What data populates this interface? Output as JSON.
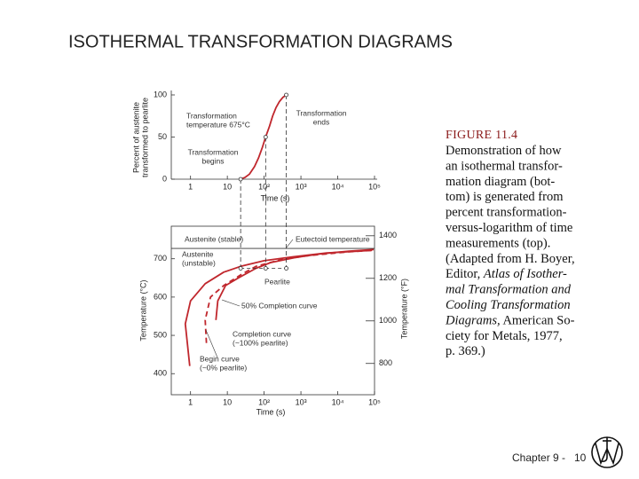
{
  "title": "ISOTHERMAL TRANSFORMATION DIAGRAMS",
  "figure": {
    "top_chart": {
      "type": "line",
      "xscale": "log",
      "ylabel": [
        "Percent of austenite",
        "transformed to pearlite"
      ],
      "xlabel": "Time (s)",
      "xlim": [
        0.3,
        100000
      ],
      "xticks": [
        1,
        10,
        {
          "value": 100,
          "label": "10²"
        },
        {
          "value": 1000,
          "label": "10³"
        },
        {
          "value": 10000,
          "label": "10⁴"
        },
        {
          "value": 100000,
          "label": "10⁵"
        }
      ],
      "ylim": [
        0,
        100
      ],
      "yticks": [
        0,
        50,
        100
      ],
      "series": [
        {
          "color": "#c0272d",
          "dashed": false,
          "x": [
            23,
            30,
            40,
            55,
            70,
            90,
            110,
            140,
            170,
            210,
            260,
            320,
            400
          ],
          "values": [
            0,
            2,
            6,
            15,
            25,
            38,
            50,
            63,
            75,
            85,
            92,
            97,
            100
          ]
        }
      ],
      "annotations": [
        [
          "Transformation",
          "temperature 675°C"
        ],
        [
          "Transformation",
          "ends"
        ],
        [
          "Transformation",
          "begins"
        ]
      ]
    },
    "bottom_chart": {
      "type": "line",
      "xscale": "log",
      "ylabel": "Temperature (°C)",
      "y2label": "Temperature (°F)",
      "xlabel": "Time (s)",
      "xlim": [
        0.3,
        100000
      ],
      "xticks": [
        1,
        10,
        {
          "value": 100,
          "label": "10²"
        },
        {
          "value": 1000,
          "label": "10³"
        },
        {
          "value": 10000,
          "label": "10⁴"
        },
        {
          "value": 100000,
          "label": "10⁵"
        }
      ],
      "ylim": [
        345,
        785
      ],
      "yticks": [
        400,
        500,
        600,
        700
      ],
      "y2lim": [
        653,
        1445
      ],
      "y2ticks": [
        800,
        1000,
        1200,
        1400
      ],
      "eutectoid_temperature": 727,
      "transformation_temperature": 675,
      "series": [
        {
          "color": "#c0272d",
          "dashed": false,
          "x": [
            0.95,
            0.72,
            1,
            2.5,
            8,
            23,
            100,
            610,
            5000,
            85000
          ],
          "values": [
            420,
            530,
            590,
            635,
            665,
            680,
            695,
            705,
            715,
            722
          ]
        },
        {
          "color": "#c0272d",
          "dashed": true,
          "x": [
            2.7,
            2.5,
            3.5,
            8,
            25,
            60,
            300,
            1500,
            20000,
            90000
          ],
          "values": [
            480,
            540,
            600,
            630,
            660,
            680,
            698,
            708,
            718,
            722
          ]
        },
        {
          "color": "#c0272d",
          "dashed": false,
          "x": [
            4.9,
            5.5,
            9,
            20,
            60,
            150,
            700,
            3000,
            20000,
            95000
          ],
          "values": [
            540,
            590,
            630,
            650,
            675,
            690,
            703,
            712,
            720,
            724
          ]
        }
      ],
      "annotations": [
        [
          "Austenite (stable)"
        ],
        [
          "Eutectoid temperature"
        ],
        [
          "Austenite",
          "(unstable)"
        ],
        [
          "Pearlite"
        ],
        [
          "50% Completion curve"
        ],
        [
          "Completion curve",
          "(~100% pearlite)"
        ],
        [
          "Begin curve",
          "(~0% pearlite)"
        ]
      ]
    },
    "caption": {
      "label": "FIGURE 11.4",
      "lines": [
        [
          {
            "text": "Demonstration of how",
            "italic": false
          }
        ],
        [
          {
            "text": "an isothermal transfor-",
            "italic": false
          }
        ],
        [
          {
            "text": "mation diagram (bot-",
            "italic": false
          }
        ],
        [
          {
            "text": "tom) is generated from",
            "italic": false
          }
        ],
        [
          {
            "text": "percent transformation-",
            "italic": false
          }
        ],
        [
          {
            "text": "versus-logarithm of time",
            "italic": false
          }
        ],
        [
          {
            "text": "measurements (top).",
            "italic": false
          }
        ],
        [
          {
            "text": "(Adapted from H. Boyer,",
            "italic": false
          }
        ],
        [
          {
            "text": "Editor, ",
            "italic": false
          },
          {
            "text": "Atlas of Isother-",
            "italic": true
          }
        ],
        [
          {
            "text": "mal Transformation and",
            "italic": true
          }
        ],
        [
          {
            "text": "Cooling Transformation",
            "italic": true
          }
        ],
        [
          {
            "text": "Diagrams,",
            "italic": true
          },
          {
            "text": " American So-",
            "italic": false
          }
        ],
        [
          {
            "text": "ciety for Metals, 1977,",
            "italic": false
          }
        ],
        [
          {
            "text": "p. 369.)",
            "italic": false
          }
        ]
      ]
    }
  },
  "footer": {
    "chapter": "Chapter 9 -",
    "page": "10"
  }
}
